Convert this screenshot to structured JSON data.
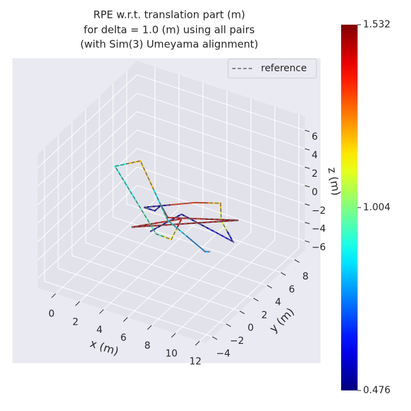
{
  "chart_data": {
    "type": "line3d",
    "title": [
      "RPE w.r.t. translation part (m)",
      "for delta = 1.0 (m) using all pairs",
      "(with Sim(3) Umeyama alignment)"
    ],
    "xlabel": "x (m)",
    "ylabel": "y (m)",
    "zlabel": "z (m)",
    "xlim": [
      -1.5,
      12.5
    ],
    "ylim": [
      -5,
      9.5
    ],
    "zlim": [
      -7,
      7.5
    ],
    "xticks": [
      0,
      2,
      4,
      6,
      8,
      10,
      12
    ],
    "yticks": [
      {
        "value": -4,
        "label": "−4"
      },
      {
        "value": -2,
        "label": "−2"
      },
      0,
      2,
      4,
      6,
      8
    ],
    "zticks": [
      {
        "value": -6,
        "label": "−6"
      },
      {
        "value": -4,
        "label": "−4"
      },
      {
        "value": -2,
        "label": "−2"
      },
      0,
      2,
      4,
      6
    ],
    "grid": true,
    "legend": "upper right",
    "series": [
      {
        "name": "reference",
        "color": "#666666",
        "style": "dashed",
        "x": [
          6.0,
          6.78,
          11.74,
          9.63,
          8.47,
          6.86,
          4.01,
          4.91,
          4.93,
          6.16,
          10.69,
          4.55,
          7.09,
          7.81,
          6.52,
          -0.47,
          0.74,
          6.34,
          10.7,
          10.98
        ],
        "y": [
          -1.63,
          1.51,
          0.32,
          2.31,
          4.26,
          3.37,
          0.87,
          0.89,
          1.75,
          0.6,
          2.97,
          -1.88,
          0.96,
          -1.79,
          -1.73,
          4.49,
          6.08,
          0.28,
          -1.9,
          -1.74
        ],
        "z": [
          0,
          0,
          0,
          0,
          0,
          0,
          0,
          0,
          0,
          0,
          0,
          0,
          0,
          0,
          0,
          0,
          0,
          0,
          0,
          0
        ]
      },
      {
        "colormap": "jet",
        "x": [
          6.0,
          6.78,
          11.74,
          9.63,
          8.47,
          6.86,
          4.01,
          4.91,
          4.93,
          6.16,
          10.69,
          4.55,
          7.09,
          7.81,
          6.52,
          -0.47,
          0.74,
          6.34,
          10.7,
          10.98
        ],
        "y": [
          -1.63,
          1.51,
          0.32,
          2.31,
          4.26,
          3.37,
          0.87,
          0.89,
          1.75,
          0.6,
          2.97,
          -1.88,
          0.96,
          -1.79,
          -1.73,
          4.49,
          6.08,
          0.28,
          -1.9,
          -1.74
        ],
        "z": [
          0,
          0,
          0,
          0,
          0,
          0,
          0,
          0,
          0,
          0,
          0,
          0,
          0,
          0,
          0,
          0,
          0,
          0,
          0,
          0
        ],
        "error": [
          0.5,
          0.52,
          0.6,
          1.1,
          1.2,
          1.35,
          0.5,
          0.55,
          0.5,
          1.45,
          1.5,
          1.48,
          1.45,
          1.15,
          0.95,
          0.9,
          1.2,
          0.85,
          0.75,
          0.8
        ]
      }
    ],
    "colorbar": {
      "lim": [
        0.476,
        1.532
      ],
      "ticks": [
        0.476,
        1.004,
        1.532
      ]
    }
  }
}
